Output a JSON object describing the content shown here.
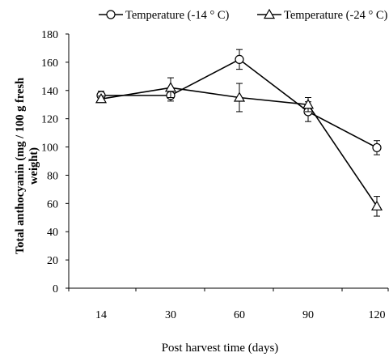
{
  "chart_data": {
    "type": "line",
    "title": "",
    "xlabel": "Post harvest time (days)",
    "ylabel_lines": [
      "Total anthocyanin (mg / 100 g fresh",
      "weight)"
    ],
    "categories": [
      "14",
      "30",
      "60",
      "90",
      "120"
    ],
    "ylim": [
      0,
      180
    ],
    "yticks": [
      "0",
      "20",
      "40",
      "60",
      "80",
      "100",
      "120",
      "140",
      "160",
      "180"
    ],
    "legend_position": "top",
    "series": [
      {
        "name": "Temperature (-14 ° C)",
        "marker": "circle",
        "values": [
          136.5,
          136.5,
          162,
          125,
          99.5
        ],
        "errors": [
          3,
          4,
          7,
          7,
          5
        ]
      },
      {
        "name": "Temperature (-24 ° C)",
        "marker": "triangle",
        "values": [
          134,
          142,
          135,
          130,
          58
        ],
        "errors": [
          2,
          7,
          10,
          5,
          7
        ]
      }
    ]
  }
}
